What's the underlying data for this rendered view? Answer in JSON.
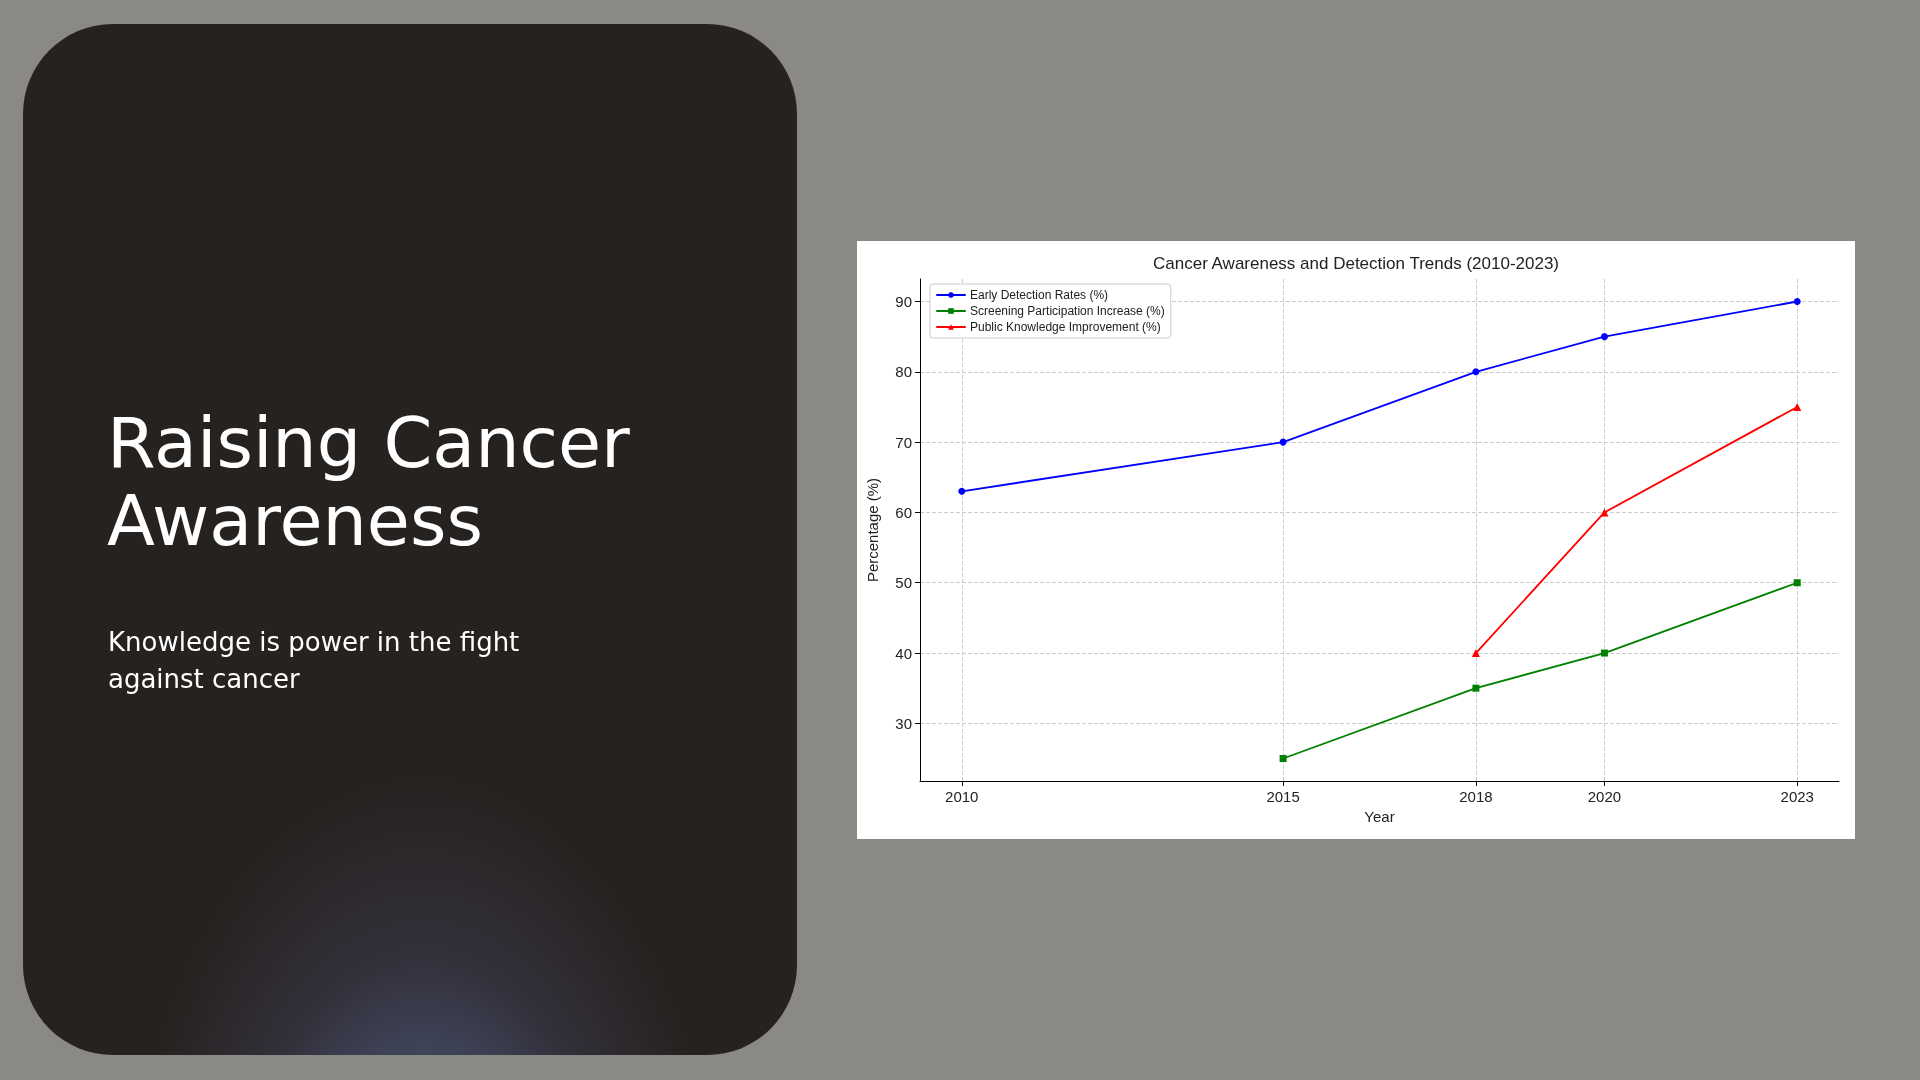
{
  "chart_data": {
    "type": "line",
    "title": "Cancer Awareness and Detection Trends (2010-2023)",
    "xlabel": "Year",
    "ylabel": "Percentage (%)",
    "annotations": [
      "Raising Cancer Awareness",
      "Knowledge is power in the fight against cancer"
    ],
    "xlim": [
      2009.35,
      2023.65
    ],
    "xticks": [
      2010,
      2015,
      2018,
      2020,
      2023
    ],
    "ylim": [
      21.8,
      93.2
    ],
    "yticks": [
      30,
      40,
      50,
      60,
      70,
      80,
      90
    ],
    "grid": true,
    "legend": "top left",
    "line_style": "solid",
    "series": [
      {
        "name": "Early Detection Rates (%)",
        "color": "#0000ff",
        "marker": "circle",
        "x": [
          2010,
          2015,
          2018,
          2020,
          2023
        ],
        "values": [
          63,
          70,
          80,
          85,
          90
        ]
      },
      {
        "name": "Screening Participation Increase (%)",
        "color": "#008000",
        "marker": "square",
        "x": [
          2015,
          2018,
          2020,
          2023
        ],
        "values": [
          25,
          35,
          40,
          50
        ]
      },
      {
        "name": "Public Knowledge Improvement (%)",
        "color": "#ff0000",
        "marker": "triangle",
        "x": [
          2018,
          2020,
          2023
        ],
        "values": [
          40,
          60,
          75
        ]
      }
    ]
  }
}
